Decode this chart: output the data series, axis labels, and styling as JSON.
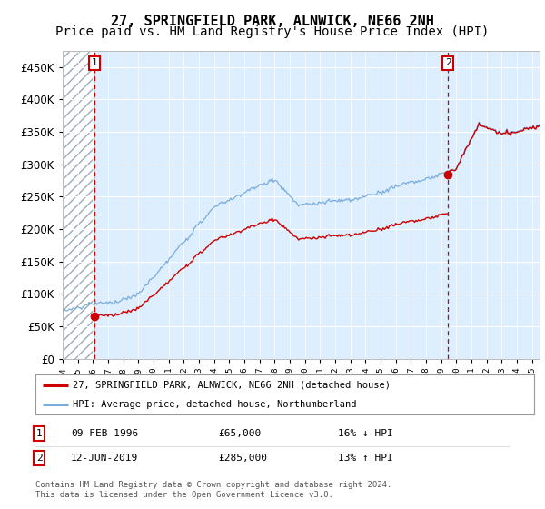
{
  "title": "27, SPRINGFIELD PARK, ALNWICK, NE66 2NH",
  "subtitle": "Price paid vs. HM Land Registry's House Price Index (HPI)",
  "ylim": [
    0,
    475000
  ],
  "yticks": [
    0,
    50000,
    100000,
    150000,
    200000,
    250000,
    300000,
    350000,
    400000,
    450000
  ],
  "ytick_labels": [
    "£0",
    "£50K",
    "£100K",
    "£150K",
    "£200K",
    "£250K",
    "£300K",
    "£350K",
    "£400K",
    "£450K"
  ],
  "xlim_start": 1994.0,
  "xlim_end": 2025.5,
  "hpi_color": "#7aacdc",
  "sale_color": "#cc0000",
  "dashed_line_color": "#cc0000",
  "background_color": "#ddeeff",
  "sale1_x": 1996.11,
  "sale1_y": 65000,
  "sale1_label": "1",
  "sale2_x": 2019.45,
  "sale2_y": 285000,
  "sale2_label": "2",
  "legend_sale_label": "27, SPRINGFIELD PARK, ALNWICK, NE66 2NH (detached house)",
  "legend_hpi_label": "HPI: Average price, detached house, Northumberland",
  "annotation1_date": "09-FEB-1996",
  "annotation1_price": "£65,000",
  "annotation1_hpi": "16% ↓ HPI",
  "annotation2_date": "12-JUN-2019",
  "annotation2_price": "£285,000",
  "annotation2_hpi": "13% ↑ HPI",
  "footer": "Contains HM Land Registry data © Crown copyright and database right 2024.\nThis data is licensed under the Open Government Licence v3.0.",
  "title_fontsize": 11,
  "subtitle_fontsize": 10
}
